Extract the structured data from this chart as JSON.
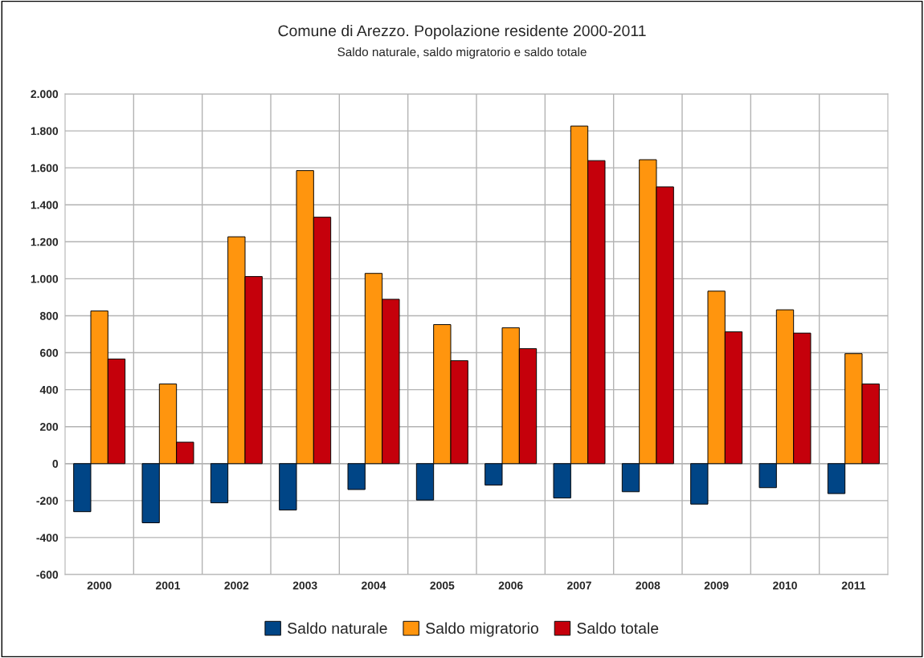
{
  "chart_data": {
    "type": "bar",
    "title": "Comune di Arezzo. Popolazione residente 2000-2011",
    "subtitle": "Saldo naturale, saldo migratorio e saldo totale",
    "categories": [
      "2000",
      "2001",
      "2002",
      "2003",
      "2004",
      "2005",
      "2006",
      "2007",
      "2008",
      "2009",
      "2010",
      "2011"
    ],
    "series": [
      {
        "name": "Saldo naturale",
        "color": "#004586",
        "values": [
          -260,
          -320,
          -212,
          -251,
          -140,
          -197,
          -116,
          -186,
          -152,
          -219,
          -130,
          -162
        ]
      },
      {
        "name": "Saldo migratorio",
        "color": "#ff950e",
        "values": [
          826,
          431,
          1227,
          1585,
          1029,
          752,
          735,
          1826,
          1644,
          933,
          832,
          595
        ]
      },
      {
        "name": "Saldo totale",
        "color": "#c5000b",
        "values": [
          566,
          116,
          1012,
          1333,
          889,
          557,
          622,
          1639,
          1497,
          713,
          706,
          431
        ]
      }
    ],
    "ylim": [
      -600,
      2000
    ],
    "yticks": [
      {
        "value": -600,
        "label": "-600"
      },
      {
        "value": -400,
        "label": "-400"
      },
      {
        "value": -200,
        "label": "-200"
      },
      0,
      200,
      400,
      600,
      800,
      {
        "value": 1000,
        "label": "1.000"
      },
      {
        "value": 1200,
        "label": "1.200"
      },
      {
        "value": 1400,
        "label": "1.400"
      },
      {
        "value": 1600,
        "label": "1.600"
      },
      {
        "value": 1800,
        "label": "1.800"
      },
      {
        "value": 2000,
        "label": "2.000"
      }
    ],
    "grid": true,
    "legend": "bottom"
  }
}
